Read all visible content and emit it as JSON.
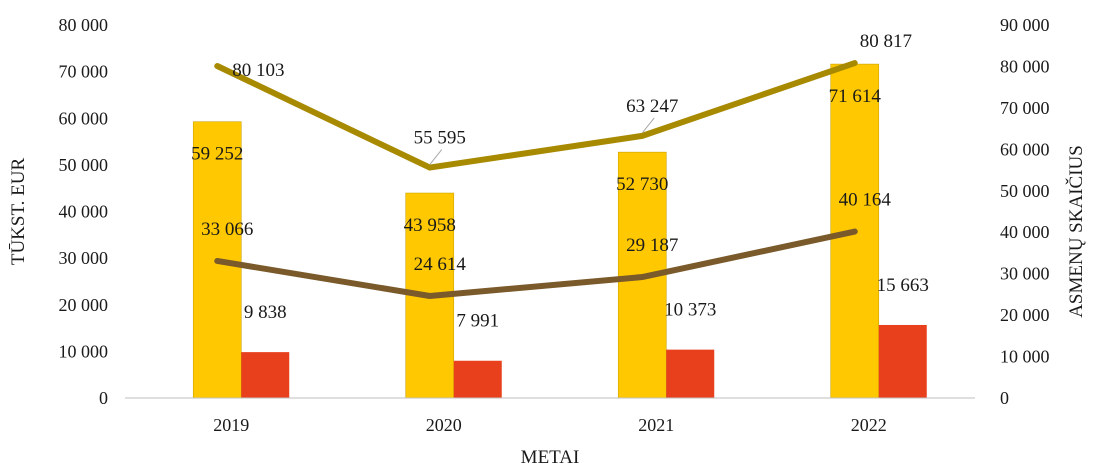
{
  "chart_data": {
    "type": "bar",
    "categories": [
      "2019",
      "2020",
      "2021",
      "2022"
    ],
    "xlabel": "METAI",
    "ylabel": "TŪKST. EUR",
    "y2label": "ASMENŲ SKAIČIUS",
    "ylim": [
      0,
      80000
    ],
    "y2lim": [
      0,
      90000
    ],
    "yticks": [
      "0",
      "10 000",
      "20 000",
      "30 000",
      "40 000",
      "50 000",
      "60 000",
      "70 000",
      "80 000"
    ],
    "y2ticks": [
      "0",
      "10 000",
      "20 000",
      "30 000",
      "40 000",
      "50 000",
      "60 000",
      "70 000",
      "80 000",
      "90 000"
    ],
    "grid": false,
    "series": [
      {
        "kind": "bar",
        "axis": "left",
        "color": "#FFC800",
        "values": [
          59252,
          43958,
          52730,
          71614
        ],
        "labels": [
          "59 252",
          "43 958",
          "52 730",
          "71 614"
        ]
      },
      {
        "kind": "bar",
        "axis": "left",
        "color": "#E8401C",
        "values": [
          9838,
          7991,
          10373,
          15663
        ],
        "labels": [
          "9 838",
          "7 991",
          "10 373",
          "15 663"
        ]
      },
      {
        "kind": "line",
        "axis": "right",
        "color": "#A88A00",
        "values": [
          80103,
          55595,
          63247,
          80817
        ],
        "labels": [
          "80 103",
          "55 595",
          "63 247",
          "80 817"
        ]
      },
      {
        "kind": "line",
        "axis": "right",
        "color": "#7A5A2A",
        "values": [
          33066,
          24614,
          29187,
          40164
        ],
        "labels": [
          "33 066",
          "24 614",
          "29 187",
          "40 164"
        ]
      }
    ]
  }
}
